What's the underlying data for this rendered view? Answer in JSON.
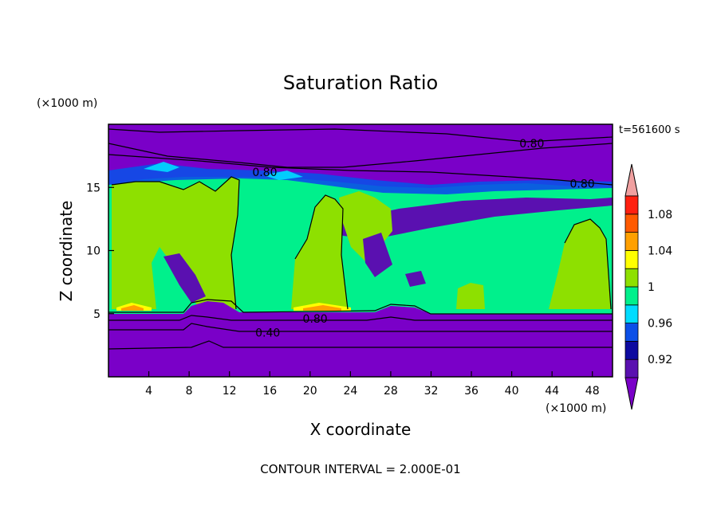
{
  "chart_data": {
    "type": "heatmap",
    "title": "Saturation Ratio",
    "xlabel": "X coordinate",
    "ylabel": "Z coordinate",
    "x_unit": "(×1000 m)",
    "y_unit": "(×1000 m)",
    "time_label": "t=561600 s",
    "footer": "CONTOUR INTERVAL = 2.000E-01",
    "xlim": [
      0,
      50
    ],
    "ylim": [
      0,
      20
    ],
    "x_ticks": [
      4,
      8,
      12,
      16,
      20,
      24,
      28,
      32,
      36,
      40,
      44,
      48
    ],
    "y_ticks": [
      5,
      10,
      15
    ],
    "colorbar": {
      "levels": [
        0.9,
        0.92,
        0.94,
        0.96,
        0.98,
        1.0,
        1.02,
        1.04,
        1.06,
        1.08,
        1.1
      ],
      "tick_labels": [
        "0.92",
        "0.96",
        "1",
        "1.04",
        "1.08"
      ],
      "tick_values": [
        0.92,
        0.96,
        1.0,
        1.04,
        1.08
      ],
      "colors": [
        "#5a10b0",
        "#0d0aa0",
        "#0b4fe8",
        "#00dcff",
        "#00f08c",
        "#8ee000",
        "#ffff00",
        "#ffa000",
        "#ff5a00",
        "#ff2010"
      ],
      "under_color": "#7a00c8",
      "over_color": "#f0a0a0"
    },
    "contour_labels": [
      {
        "text": "0.80",
        "x": 15.5,
        "z": 16.2
      },
      {
        "text": "0.80",
        "x": 42.0,
        "z": 18.5
      },
      {
        "text": "0.80",
        "x": 47.0,
        "z": 15.3
      },
      {
        "text": "0.80",
        "x": 20.5,
        "z": 4.6
      },
      {
        "text": "0.40",
        "x": 15.8,
        "z": 3.5
      }
    ]
  }
}
